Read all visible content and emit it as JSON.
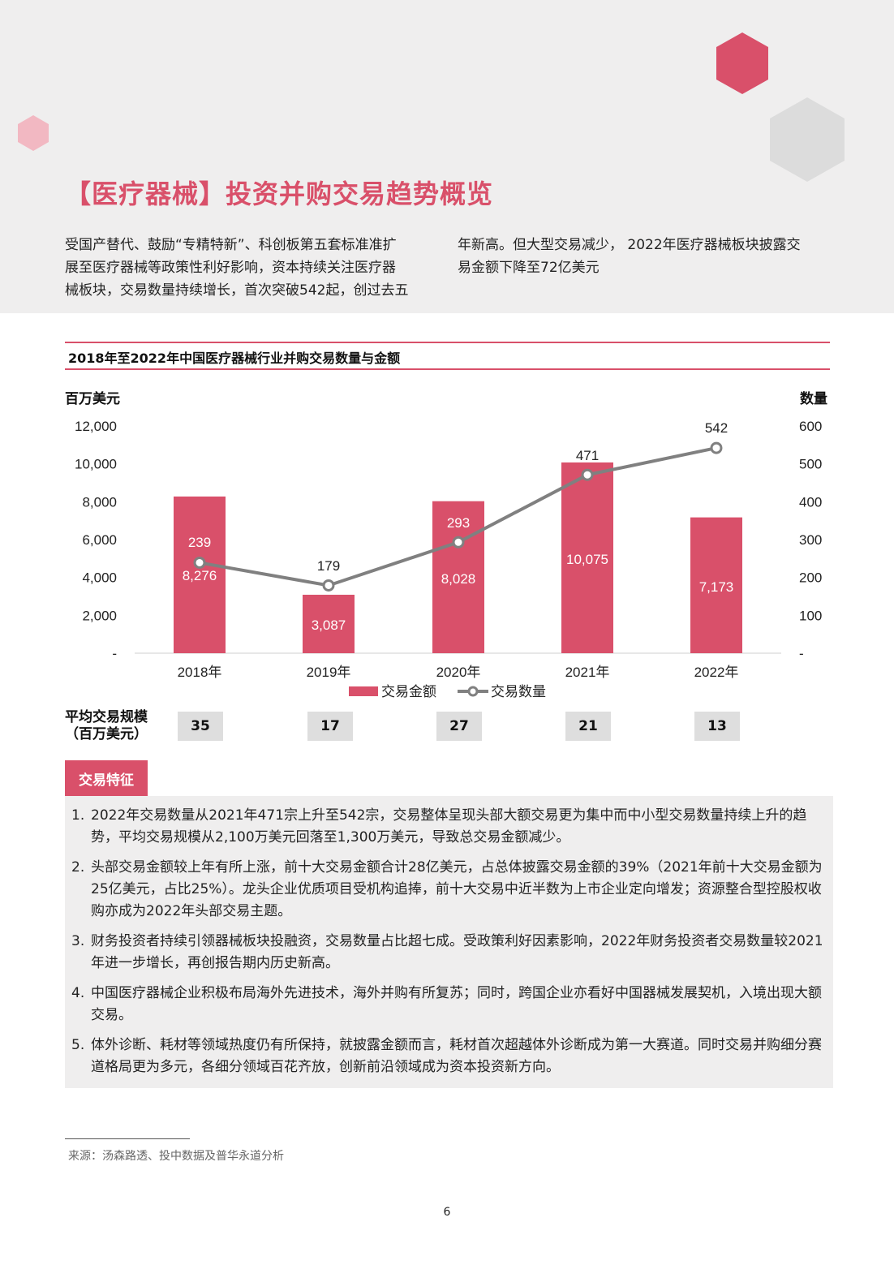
{
  "colors": {
    "accent": "#d9506a",
    "line": "#808080",
    "band": "#efeeee",
    "box": "#dedede"
  },
  "title": "【医疗器械】投资并购交易趋势概览",
  "intro": {
    "left_lines": [
      "受国产替代、鼓励“专精特新”、科创板第五套标准准扩",
      "展至医疗器械等政策性利好影响，资本持续关注医疗器",
      "械板块，交易数量持续增长，首次突破542起，创过去五"
    ],
    "right_lines": [
      "年新高。但大型交易减少， 2022年医疗器械板块披露交",
      "易金额下降至72亿美元"
    ]
  },
  "chart": {
    "title": "2018年至2022年中国医疗器械行业并购交易数量与金额",
    "left_unit": "百万美元",
    "right_unit": "数量"
  },
  "chart_data": {
    "type": "bar",
    "title": "2018年至2022年中国医疗器械行业并购交易数量与金额",
    "categories": [
      "2018年",
      "2019年",
      "2020年",
      "2021年",
      "2022年"
    ],
    "series": [
      {
        "name": "交易金额",
        "type": "bar",
        "axis": "left",
        "values": [
          8276,
          3087,
          8028,
          10075,
          7173
        ],
        "labels": [
          "8,276",
          "3,087",
          "8,028",
          "10,075",
          "7,173"
        ]
      },
      {
        "name": "交易数量",
        "type": "line",
        "axis": "right",
        "values": [
          239,
          179,
          293,
          471,
          542
        ],
        "labels": [
          "239",
          "179",
          "293",
          "471",
          "542"
        ]
      }
    ],
    "ylabel": "百万美元",
    "y2label": "数量",
    "ylim": [
      0,
      12000
    ],
    "y2lim": [
      0,
      600
    ],
    "yticks": [
      "-",
      "2,000",
      "4,000",
      "6,000",
      "8,000",
      "10,000",
      "12,000"
    ],
    "y2ticks": [
      "-",
      "100",
      "200",
      "300",
      "400",
      "500",
      "600"
    ],
    "legend": [
      "交易金额",
      "交易数量"
    ],
    "legend_position": "bottom",
    "grid": false
  },
  "avg": {
    "label_lines": [
      "平均交易规模",
      "（百万美元）"
    ],
    "values": [
      "35",
      "17",
      "27",
      "21",
      "13"
    ]
  },
  "features": {
    "tab": "交易特征",
    "items": [
      {
        "num": "1.",
        "text": "2022年交易数量从2021年471宗上升至542宗，交易整体呈现头部大额交易更为集中而中小型交易数量持续上升的趋势，平均交易规模从2,100万美元回落至1,300万美元，导致总交易金额减少。"
      },
      {
        "num": "2.",
        "text": "头部交易金额较上年有所上涨，前十大交易金额合计28亿美元，占总体披露交易金额的39%（2021年前十大交易金额为25亿美元，占比25%）。龙头企业优质项目受机构追捧，前十大交易中近半数为上市企业定向增发；资源整合型控股权收购亦成为2022年头部交易主题。"
      },
      {
        "num": "3.",
        "text": "财务投资者持续引领器械板块投融资，交易数量占比超七成。受政策利好因素影响，2022年财务投资者交易数量较2021年进一步增长，再创报告期内历史新高。"
      },
      {
        "num": "4.",
        "text": "中国医疗器械企业积极布局海外先进技术，海外并购有所复苏；同时，跨国企业亦看好中国器械发展契机，入境出现大额交易。"
      },
      {
        "num": "5.",
        "text": "体外诊断、耗材等领域热度仍有所保持，就披露金额而言，耗材首次超越体外诊断成为第一大赛道。同时交易并购细分赛道格局更为多元，各细分领域百花齐放，创新前沿领域成为资本投资新方向。"
      }
    ]
  },
  "source": "来源：汤森路透、投中数据及普华永道分析",
  "page_number": "6"
}
